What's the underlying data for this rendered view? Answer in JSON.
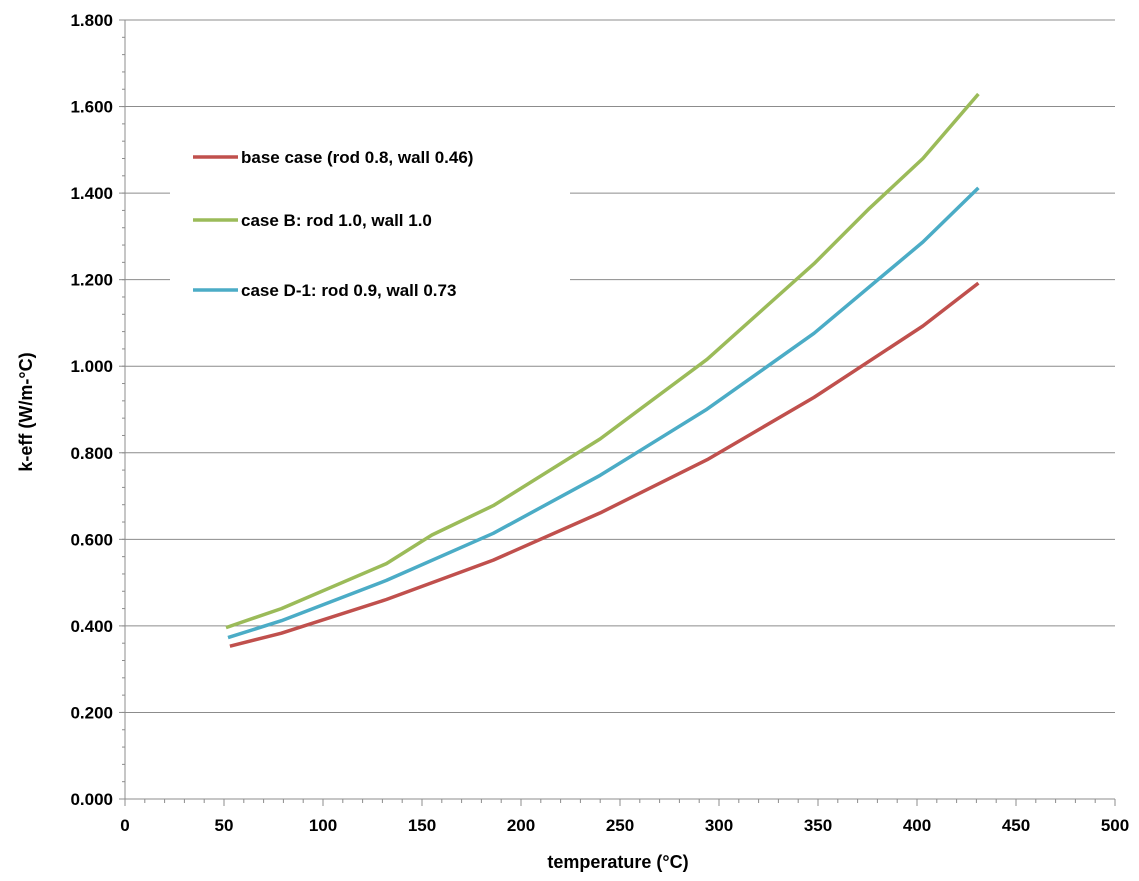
{
  "chart_data": {
    "type": "line",
    "xlabel": "temperature (°C)",
    "ylabel": "k-eff (W/m-°C)",
    "xlim": [
      0,
      500
    ],
    "ylim": [
      0,
      1.8
    ],
    "x_ticks": [
      "0",
      "50",
      "100",
      "150",
      "200",
      "250",
      "300",
      "350",
      "400",
      "450",
      "500"
    ],
    "y_ticks": [
      "0.000",
      "0.200",
      "0.400",
      "0.600",
      "0.800",
      "1.000",
      "1.200",
      "1.400",
      "1.600",
      "1.800"
    ],
    "grid": "horizontal",
    "legend_position": "top-left",
    "series": [
      {
        "name": "base case (rod 0.8, wall 0.46)",
        "color": "#c0504d",
        "points": [
          [
            53,
            0.353
          ],
          [
            79,
            0.383
          ],
          [
            132,
            0.461
          ],
          [
            186,
            0.552
          ],
          [
            240,
            0.661
          ],
          [
            294,
            0.784
          ],
          [
            348,
            0.928
          ],
          [
            403,
            1.093
          ],
          [
            431,
            1.192
          ]
        ]
      },
      {
        "name": "case B: rod 1.0, wall 1.0",
        "color": "#9bbb59",
        "points": [
          [
            51,
            0.396
          ],
          [
            79,
            0.44
          ],
          [
            132,
            0.544
          ],
          [
            155,
            0.61
          ],
          [
            186,
            0.678
          ],
          [
            240,
            0.832
          ],
          [
            294,
            1.016
          ],
          [
            348,
            1.237
          ],
          [
            376,
            1.365
          ],
          [
            403,
            1.48
          ],
          [
            431,
            1.629
          ]
        ]
      },
      {
        "name": "case D-1: rod 0.9, wall 0.73",
        "color": "#4bacc6",
        "points": [
          [
            52,
            0.373
          ],
          [
            79,
            0.412
          ],
          [
            132,
            0.505
          ],
          [
            186,
            0.614
          ],
          [
            240,
            0.748
          ],
          [
            294,
            0.901
          ],
          [
            348,
            1.076
          ],
          [
            403,
            1.287
          ],
          [
            431,
            1.412
          ]
        ]
      }
    ]
  }
}
